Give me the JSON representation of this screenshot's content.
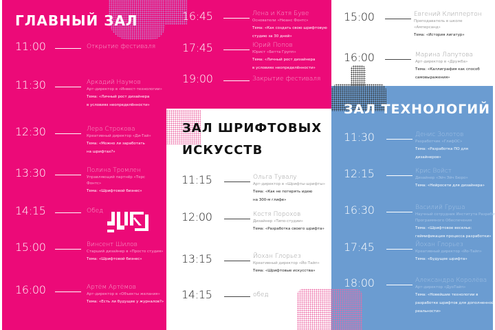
{
  "colors": {
    "pink": "#ec0a78",
    "blue": "#6b9cd1",
    "white": "#ffffff"
  },
  "halls": [
    {
      "title": "ГЛАВНЫЙ ЗАЛ",
      "sessions": [
        {
          "time": "11:00",
          "name": "Открытие фестиваля"
        },
        {
          "time": "11:30",
          "name": "Аркадий Наумов",
          "role": "Арт-директор в «Инвест-технологии»",
          "topic": "Тема: «Личный рост дизайнера\nв условиях неопределённости»"
        },
        {
          "time": "12:30",
          "name": "Лера Строкова",
          "role": "Креативный директор «Ди-Тай»",
          "topic": "Тема: «Можно ли заработать\nна шрифтах?»"
        },
        {
          "time": "13:30",
          "name": "Полина Тромлен",
          "role": "Управляющий партнёр «Терс\nФонтс»",
          "topic": "Тема: «Шрифтовой бизнес»"
        },
        {
          "time": "14:15",
          "name": "Обед"
        },
        {
          "time": "15:00",
          "name": "Винсент Шилов",
          "role": "Старший дизайнер в «Просто студия»",
          "topic": "Тема: «Шрифтовой бизнес»"
        },
        {
          "time": "16:00",
          "name": "Артём Артёмов",
          "role": "Арт-директор в «Объекты желания»",
          "topic": "Тема: «Есть ли будущее у журналов?»"
        },
        {
          "time": "16:45",
          "name": "Лена и Катя Буве",
          "role": "Основатели «Нюанс Фонтс»",
          "topic": "Тема: «Как создать свою шрифтовую\nстудию за 30 дней»"
        },
        {
          "time": "17:45",
          "name": "Юрий Попов",
          "role": "Юрист «Бетта Групп»",
          "topic": "Тема: «Личный рост дизайнера\nв условиях неопределённости»"
        },
        {
          "time": "19:00",
          "name": "Закрытие фестиваля"
        }
      ]
    },
    {
      "title_lines": [
        "ЗАЛ ШРИФТОВЫХ",
        "ИСКУССТВ"
      ],
      "sessions": [
        {
          "time": "11:15",
          "name": "Ольга Тувалу",
          "role": "Арт-директор в «Шрифты-шрифты»",
          "topic": "Тема: «Как не потерять идею\nна 300-м глифе»"
        },
        {
          "time": "12:00",
          "name": "Костя Порохов",
          "role": "Дизайнер «Типо-студии»",
          "topic": "Тема: «Разработка своего шрифта»"
        },
        {
          "time": "13:15",
          "name": "Йохан Глорьез",
          "role": "Креативный директор «Йо-Тайп»",
          "topic": "Тема: «Шрифтовые искусства»"
        },
        {
          "time": "14:15",
          "name": "обед"
        },
        {
          "time": "15:00",
          "name": "Евгений Клиппертон",
          "role": "Преподаватель в школе\n«Амперсанд»",
          "topic": "Тема: «История лигатур»"
        },
        {
          "time": "16:00",
          "name": "Марина Лапутова",
          "role": "Арт-директор в «Дружба»",
          "topic": "Тема: «Каллиграфия как способ\nсамовыражения»"
        }
      ]
    },
    {
      "title": "ЗАЛ ТЕХНОЛОГИЙ",
      "sessions": [
        {
          "time": "11:30",
          "name": "Денис Золотов",
          "role": "Разработчик «ГлифОС»",
          "topic": "Тема: «Разработка ПО для\nдизайнеров»"
        },
        {
          "time": "12:15",
          "name": "Крис Войст",
          "role": "Дизайнер «Эйч Эйч Бюро»",
          "topic": "Тема: «Нейросети для дизайнера»"
        },
        {
          "time": "16:30",
          "name": "Василий Груша",
          "role": "Научный сотрудник Института Разработки\nПрограммного Обеспечения",
          "topic": "Тема: «Шрифтовое веселье:\nгеймификация процесса разработки»"
        },
        {
          "time": "17:45",
          "name": "Йохан Глорьез",
          "role": "Креативный директор «Йо-Тайп»",
          "topic": "Тема: «Будущее шрифта»"
        },
        {
          "time": "18:00",
          "name": "Александра Королёва",
          "role": "Арт-директор «ДуоТайп»",
          "topic": "Тема: «Новейшие технологии в\nразработке шрифтов для дополненной\nреальности»"
        }
      ]
    }
  ],
  "logo": {
    "icon": "festival-logo-glyphs",
    "text": "ШО"
  }
}
